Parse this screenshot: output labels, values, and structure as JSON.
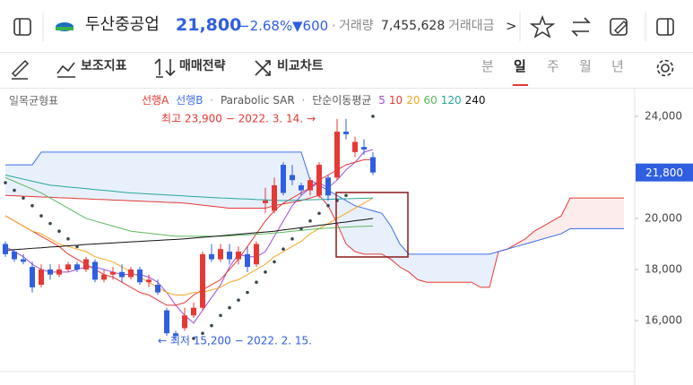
{
  "header": {
    "name": "두산중공업",
    "price": "21,800",
    "change_pct": "−2.68%",
    "change": "▼600",
    "separator": "·",
    "volume_label": "거래량",
    "volume": "7,455,628",
    "value_label": "거래대금",
    "more": ">"
  },
  "toolbar": {
    "indicators": "보조지표",
    "strategy": "매매전략",
    "compare": "비교차트",
    "periods": [
      "분",
      "일",
      "주",
      "월",
      "년"
    ]
  },
  "chart_data": {
    "type": "candlestick",
    "indicator_title": "일목균형표",
    "up_color": "#e53935",
    "down_color": "#2f5fe0",
    "ylim": [
      14000,
      25050
    ],
    "yticks": [
      {
        "value": 24000,
        "label": "24,000"
      },
      {
        "value": 20000,
        "label": "20,000"
      },
      {
        "value": 18000,
        "label": "18,000"
      },
      {
        "value": 16000,
        "label": "16,000"
      }
    ],
    "grid": false,
    "last_price": {
      "value": 21800,
      "label": "21,800"
    },
    "last_price_color": "#2f5fe0",
    "high_label": "최고 23,900 − 2022. 3. 14. →",
    "high_color": "#e53935",
    "low_label": "← 최저 15,200 − 2022. 2. 15.",
    "low_color": "#2f5fe0",
    "open": [
      19000,
      18700,
      18400,
      18100,
      17400,
      18000,
      17800,
      18000,
      18200,
      18000,
      18300,
      17600,
      17800,
      17900,
      17700,
      18000,
      17500,
      17400,
      16400,
      15500,
      15700,
      16200,
      16500,
      18600,
      18400,
      18700,
      18400,
      18600,
      18200,
      20600,
      20300,
      22100,
      21700,
      21300,
      21100,
      20900,
      21600,
      21600,
      23400,
      22600,
      22800,
      22400
    ],
    "high": [
      19100,
      18800,
      18600,
      18300,
      18200,
      18200,
      18200,
      18300,
      18300,
      18500,
      18400,
      18000,
      18100,
      18200,
      18100,
      18100,
      17800,
      17600,
      16500,
      15600,
      16500,
      16700,
      18700,
      19000,
      19000,
      19000,
      18900,
      18900,
      19100,
      21200,
      21600,
      22200,
      22100,
      21400,
      21600,
      22200,
      21700,
      23900,
      23900,
      23200,
      23100,
      22600
    ],
    "low": [
      18500,
      18300,
      18200,
      17100,
      17300,
      17600,
      17700,
      17900,
      17900,
      17900,
      17500,
      17500,
      17600,
      17500,
      17600,
      17400,
      17300,
      17000,
      15400,
      15200,
      15600,
      16100,
      16400,
      18300,
      18300,
      18200,
      18200,
      17900,
      18100,
      20200,
      20200,
      20900,
      21300,
      20900,
      20900,
      20800,
      20700,
      21500,
      23100,
      22400,
      22500,
      21700
    ],
    "close": [
      18600,
      18400,
      18300,
      17300,
      18000,
      17800,
      18000,
      18200,
      18000,
      18400,
      17600,
      17800,
      17900,
      17700,
      18000,
      17500,
      17600,
      17100,
      15500,
      15400,
      16200,
      16500,
      18600,
      18400,
      18800,
      18400,
      18700,
      18100,
      19000,
      20700,
      21300,
      21000,
      21500,
      21100,
      21500,
      22100,
      20900,
      23400,
      23300,
      23000,
      22700,
      21800
    ],
    "separator": "·",
    "ichimoku": {
      "spanA": {
        "name": "선행A",
        "color": "#e53935",
        "values": [
          20900,
          20890,
          20870,
          20860,
          20840,
          20830,
          20810,
          20800,
          20780,
          20770,
          20750,
          20740,
          20720,
          20710,
          20690,
          20680,
          20660,
          20650,
          20630,
          20620,
          20600,
          20560,
          20520,
          20480,
          20440,
          20400,
          20400,
          20400,
          20400,
          20400,
          20500,
          20570,
          20630,
          20700,
          20800,
          20900,
          20500,
          19800,
          19000,
          18700,
          18600,
          18600,
          18600,
          18400,
          18100,
          17900,
          17600,
          17500,
          17500,
          17500,
          17500,
          17500,
          17500,
          17300,
          17300,
          18700,
          18800,
          19000,
          19200,
          19500,
          19700,
          19900,
          20100,
          20800,
          20800,
          20800,
          20800,
          20800,
          20800,
          20800
        ]
      },
      "spanB": {
        "name": "선행B",
        "color": "#3f6fe8",
        "values": [
          22100,
          22100,
          22100,
          22100,
          22600,
          22600,
          22600,
          22600,
          22600,
          22600,
          22600,
          22600,
          22600,
          22600,
          22600,
          22600,
          22600,
          22600,
          22600,
          22600,
          22600,
          22600,
          22600,
          22600,
          22600,
          22600,
          22600,
          22600,
          22600,
          22600,
          22600,
          22600,
          22600,
          22600,
          21500,
          21300,
          21100,
          20900,
          20700,
          20500,
          20400,
          20300,
          20200,
          19700,
          19000,
          18600,
          18600,
          18600,
          18600,
          18600,
          18600,
          18600,
          18600,
          18600,
          18600,
          18700,
          18800,
          18900,
          19000,
          19100,
          19200,
          19300,
          19400,
          19600,
          19600,
          19600,
          19600,
          19600,
          19600,
          19600
        ]
      },
      "cloud_b_color": "#e8f0fc",
      "cloud_a_color": "#fdecec"
    },
    "sar": {
      "name": "Parabolic SAR",
      "color": "#37474f",
      "values": [
        21400,
        21100,
        20800,
        20500,
        20100,
        19800,
        19500,
        19200,
        18900,
        null,
        null,
        null,
        null,
        null,
        null,
        null,
        null,
        null,
        null,
        null,
        null,
        15300,
        15500,
        15800,
        16200,
        16500,
        16800,
        17100,
        17500,
        17900,
        18300,
        18800,
        19200,
        19600,
        19900,
        20200,
        20500,
        20700,
        20900,
        null,
        null,
        24000
      ]
    },
    "ma": {
      "name": "단순이동평균",
      "series": [
        {
          "name": "5",
          "color": "#9b4dde",
          "values": [
            18900,
            18700,
            18500,
            18200,
            18000,
            17900,
            17900,
            17900,
            18000,
            18100,
            18100,
            18000,
            17900,
            17800,
            17800,
            17800,
            17700,
            17500,
            17100,
            16600,
            16200,
            15900,
            16400,
            16900,
            17400,
            18100,
            18600,
            18500,
            18500,
            18700,
            19300,
            19900,
            20500,
            20900,
            21200,
            21400,
            21200,
            21500,
            21900,
            22200,
            22600,
            22700
          ]
        },
        {
          "name": "10",
          "color": "#e53935",
          "values": [
            20100,
            19900,
            19700,
            19500,
            19300,
            19100,
            18900,
            18600,
            18400,
            18200,
            18000,
            17800,
            17700,
            17500,
            17300,
            17100,
            17000,
            16800,
            16600,
            16600,
            16700,
            17000,
            17200,
            17400,
            17600,
            18000,
            18400,
            18900,
            19400,
            19900,
            20300,
            20600,
            20800,
            21000,
            21200,
            21500,
            21700,
            21900,
            22100,
            22200,
            22300,
            22300
          ]
        },
        {
          "name": "20",
          "color": "#f5a623",
          "values": [
            20100,
            19900,
            19700,
            19500,
            19400,
            19200,
            19000,
            18900,
            18800,
            18700,
            18500,
            18400,
            18300,
            18100,
            17900,
            17700,
            17500,
            17300,
            17100,
            17000,
            17000,
            17100,
            17100,
            17200,
            17300,
            17500,
            17600,
            17800,
            18000,
            18200,
            18500,
            18700,
            18900,
            19100,
            19400,
            19600,
            19800,
            20000,
            20200,
            20400,
            20600,
            20800
          ]
        },
        {
          "name": "60",
          "color": "#5cb85c",
          "values": [
            21600,
            21450,
            21300,
            21150,
            21000,
            20800,
            20600,
            20400,
            20200,
            20000,
            19900,
            19800,
            19700,
            19600,
            19500,
            19460,
            19420,
            19380,
            19340,
            19300,
            19300,
            19300,
            19300,
            19300,
            19300,
            19320,
            19340,
            19360,
            19380,
            19400,
            19430,
            19460,
            19500,
            19530,
            19570,
            19600,
            19620,
            19640,
            19660,
            19680,
            19690,
            19700
          ]
        },
        {
          "name": "120",
          "color": "#26a69a",
          "values": [
            21700,
            21620,
            21540,
            21460,
            21380,
            21300,
            21270,
            21230,
            21200,
            21170,
            21130,
            21100,
            21070,
            21030,
            21000,
            20980,
            20960,
            20940,
            20920,
            20900,
            20880,
            20860,
            20840,
            20820,
            20800,
            20790,
            20770,
            20760,
            20740,
            20730,
            20710,
            20700,
            20710,
            20720,
            20730,
            20740,
            20750,
            20760,
            20770,
            20780,
            20790,
            20800
          ]
        },
        {
          "name": "240",
          "color": "#111111",
          "values": [
            18750,
            18780,
            18800,
            18830,
            18850,
            18880,
            18900,
            18930,
            18950,
            18980,
            19000,
            19020,
            19040,
            19060,
            19080,
            19100,
            19120,
            19140,
            19160,
            19180,
            19200,
            19230,
            19260,
            19290,
            19320,
            19350,
            19380,
            19410,
            19440,
            19470,
            19500,
            19550,
            19590,
            19640,
            19680,
            19730,
            19770,
            19820,
            19860,
            19910,
            19950,
            20000
          ]
        }
      ]
    }
  }
}
